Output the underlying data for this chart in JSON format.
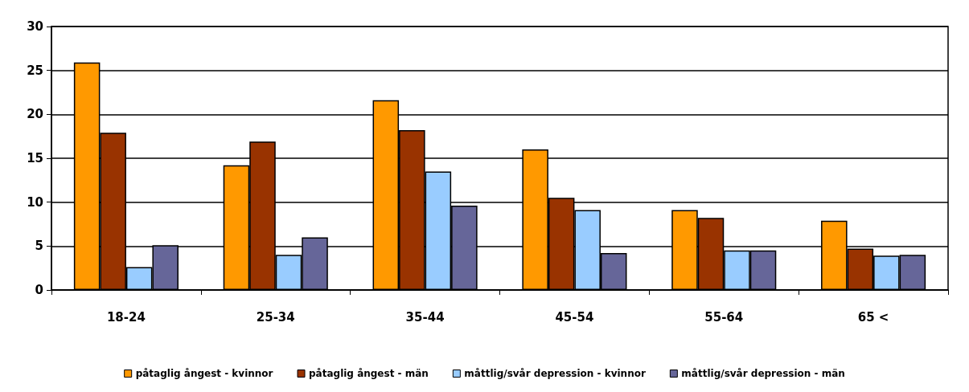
{
  "chart_data": {
    "type": "bar",
    "categories": [
      "18-24",
      "25-34",
      "35-44",
      "45-54",
      "55-64",
      "65 <"
    ],
    "series": [
      {
        "name": "påtaglig ångest - kvinnor",
        "color": "#ff9900",
        "values": [
          25.9,
          14.2,
          21.6,
          16.0,
          9.1,
          7.9
        ]
      },
      {
        "name": "påtaglig ångest - män",
        "color": "#993300",
        "values": [
          17.9,
          16.9,
          18.2,
          10.5,
          8.2,
          4.7
        ]
      },
      {
        "name": "måttlig/svår depression - kvinnor",
        "color": "#99ccff",
        "values": [
          2.6,
          4.0,
          13.5,
          9.1,
          4.5,
          3.9
        ]
      },
      {
        "name": "måttlig/svår depression - män",
        "color": "#666699",
        "values": [
          5.1,
          6.0,
          9.6,
          4.2,
          4.5,
          4.0
        ]
      }
    ],
    "ylim": [
      0,
      30
    ],
    "yticks": [
      0,
      5,
      10,
      15,
      20,
      25,
      30
    ],
    "grid": "y",
    "legend": "bottom"
  }
}
